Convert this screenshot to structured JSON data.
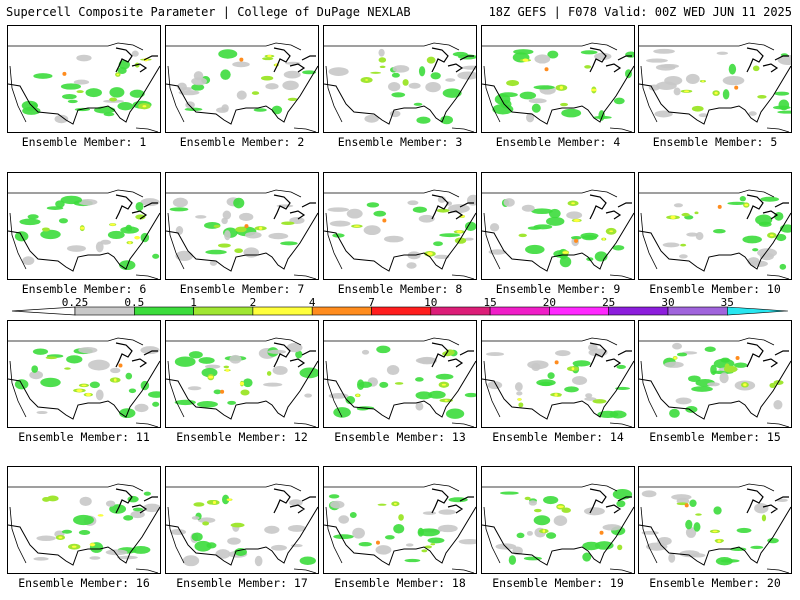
{
  "header": {
    "title": "Supercell Composite Parameter | College of DuPage NEXLAB",
    "run_info": "18Z GEFS | F078 Valid: 00Z WED JUN 11 2025"
  },
  "colorbar": {
    "labels": [
      "0.25",
      "0.5",
      "1",
      "2",
      "4",
      "7",
      "10",
      "15",
      "20",
      "25",
      "30",
      "35"
    ],
    "colors": [
      "#c8c8c8",
      "#3cdc3c",
      "#a0e632",
      "#ffff3c",
      "#ff8c1e",
      "#ff1e1e",
      "#dc1e78",
      "#f01ec8",
      "#ff28ff",
      "#8c1edc",
      "#a064dc",
      "#28e6f0"
    ]
  },
  "members": [
    {
      "label": "Ensemble Member: 1"
    },
    {
      "label": "Ensemble Member: 2"
    },
    {
      "label": "Ensemble Member: 3"
    },
    {
      "label": "Ensemble Member: 4"
    },
    {
      "label": "Ensemble Member: 5"
    },
    {
      "label": "Ensemble Member: 6"
    },
    {
      "label": "Ensemble Member: 7"
    },
    {
      "label": "Ensemble Member: 8"
    },
    {
      "label": "Ensemble Member: 9"
    },
    {
      "label": "Ensemble Member: 10"
    },
    {
      "label": "Ensemble Member: 11"
    },
    {
      "label": "Ensemble Member: 12"
    },
    {
      "label": "Ensemble Member: 13"
    },
    {
      "label": "Ensemble Member: 14"
    },
    {
      "label": "Ensemble Member: 15"
    },
    {
      "label": "Ensemble Member: 16"
    },
    {
      "label": "Ensemble Member: 17"
    },
    {
      "label": "Ensemble Member: 18"
    },
    {
      "label": "Ensemble Member: 19"
    },
    {
      "label": "Ensemble Member: 20"
    }
  ]
}
